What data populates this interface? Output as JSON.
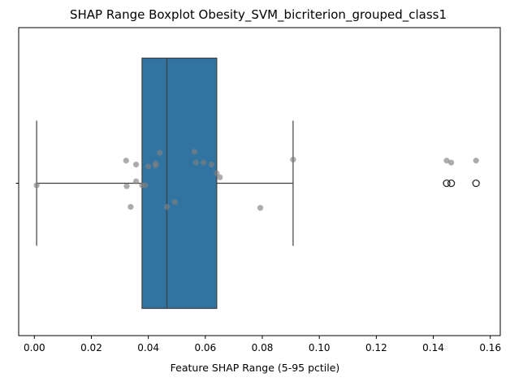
{
  "chart_data": {
    "type": "boxplot",
    "title": "SHAP Range Boxplot Obesity_SVM_bicriterion_grouped_class1",
    "xlabel": "Feature SHAP Range (5-95 pctile)",
    "ylabel": "",
    "xlim": [
      -0.0055,
      0.1635
    ],
    "xticks": [
      0.0,
      0.02,
      0.04,
      0.06,
      0.08,
      0.1,
      0.12,
      0.14,
      0.16
    ],
    "xtick_labels": [
      "0.00",
      "0.02",
      "0.04",
      "0.06",
      "0.08",
      "0.10",
      "0.12",
      "0.14",
      "0.16"
    ],
    "orientation": "horizontal",
    "grid": false,
    "box_color": "#3274a1",
    "strip_color": "#808080",
    "box": {
      "whisker_low": 0.0008,
      "q1": 0.0378,
      "median": 0.0465,
      "q3": 0.064,
      "whisker_high": 0.0908
    },
    "outliers": [
      0.1447,
      0.1463,
      0.155
    ],
    "points": [
      {
        "x": 0.0008,
        "jitter": 0.02
      },
      {
        "x": 0.0322,
        "jitter": -0.23
      },
      {
        "x": 0.0324,
        "jitter": 0.03
      },
      {
        "x": 0.0338,
        "jitter": 0.24
      },
      {
        "x": 0.0357,
        "jitter": -0.19
      },
      {
        "x": 0.0357,
        "jitter": -0.02
      },
      {
        "x": 0.0378,
        "jitter": 0.02
      },
      {
        "x": 0.039,
        "jitter": 0.02
      },
      {
        "x": 0.04,
        "jitter": -0.17
      },
      {
        "x": 0.0426,
        "jitter": -0.18
      },
      {
        "x": 0.0426,
        "jitter": -0.2
      },
      {
        "x": 0.044,
        "jitter": -0.31
      },
      {
        "x": 0.0465,
        "jitter": 0.24
      },
      {
        "x": 0.0493,
        "jitter": 0.19
      },
      {
        "x": 0.0562,
        "jitter": -0.32
      },
      {
        "x": 0.0567,
        "jitter": -0.21
      },
      {
        "x": 0.0594,
        "jitter": -0.21
      },
      {
        "x": 0.0622,
        "jitter": -0.19
      },
      {
        "x": 0.064,
        "jitter": -0.1
      },
      {
        "x": 0.0651,
        "jitter": -0.06
      },
      {
        "x": 0.0793,
        "jitter": 0.25
      },
      {
        "x": 0.0908,
        "jitter": -0.24
      },
      {
        "x": 0.1447,
        "jitter": -0.23
      },
      {
        "x": 0.1463,
        "jitter": -0.21
      },
      {
        "x": 0.155,
        "jitter": -0.23
      }
    ]
  }
}
